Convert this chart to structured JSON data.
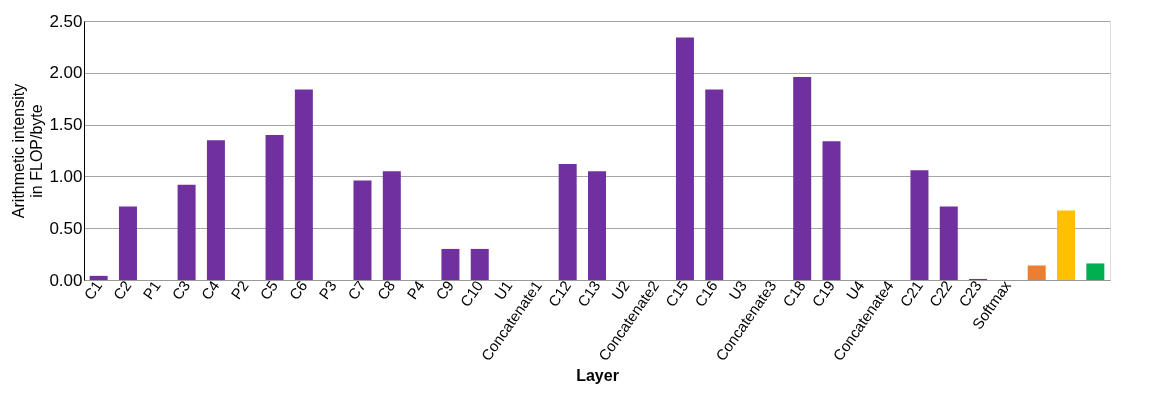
{
  "chart_data": {
    "type": "bar",
    "xlabel": "Layer",
    "ylabel": "Arithmetic intensity in FLOP/byte",
    "categories": [
      "C1",
      "C2",
      "P1",
      "C3",
      "C4",
      "P2",
      "C5",
      "C6",
      "P3",
      "C7",
      "C8",
      "P4",
      "C9",
      "C10",
      "U1",
      "Concatenate1",
      "C12",
      "C13",
      "U2",
      "Concatenate2",
      "C15",
      "C16",
      "U3",
      "Concatenate3",
      "C18",
      "C19",
      "U4",
      "Concatenate4",
      "C21",
      "C22",
      "C23",
      "Softmax",
      null,
      null,
      null
    ],
    "values": [
      0.04,
      0.71,
      0,
      0.92,
      1.35,
      0,
      1.4,
      1.84,
      0,
      0.96,
      1.05,
      0,
      0.3,
      0.3,
      0,
      0,
      1.12,
      1.05,
      0,
      0,
      2.34,
      1.84,
      0,
      0,
      1.96,
      1.34,
      0,
      0,
      1.06,
      0.71,
      0.01,
      0,
      0.14,
      0.67,
      0.16
    ],
    "colors": [
      "#7030a0",
      "#7030a0",
      "#7030a0",
      "#7030a0",
      "#7030a0",
      "#7030a0",
      "#7030a0",
      "#7030a0",
      "#7030a0",
      "#7030a0",
      "#7030a0",
      "#7030a0",
      "#7030a0",
      "#7030a0",
      "#7030a0",
      "#7030a0",
      "#7030a0",
      "#7030a0",
      "#7030a0",
      "#7030a0",
      "#7030a0",
      "#7030a0",
      "#7030a0",
      "#7030a0",
      "#7030a0",
      "#7030a0",
      "#7030a0",
      "#7030a0",
      "#7030a0",
      "#7030a0",
      "#7030a0",
      "#7030a0",
      "#ed7d31",
      "#ffc000",
      "#00b050"
    ],
    "ylim": [
      0,
      2.5
    ],
    "yticks": [
      {
        "value": 0,
        "label": "0.00"
      },
      {
        "value": 0.5,
        "label": "0.50"
      },
      {
        "value": 1,
        "label": "1.00"
      },
      {
        "value": 1.5,
        "label": "1.50"
      },
      {
        "value": 2,
        "label": "2.00"
      },
      {
        "value": 2.5,
        "label": "2.50"
      }
    ],
    "grid": "y"
  }
}
